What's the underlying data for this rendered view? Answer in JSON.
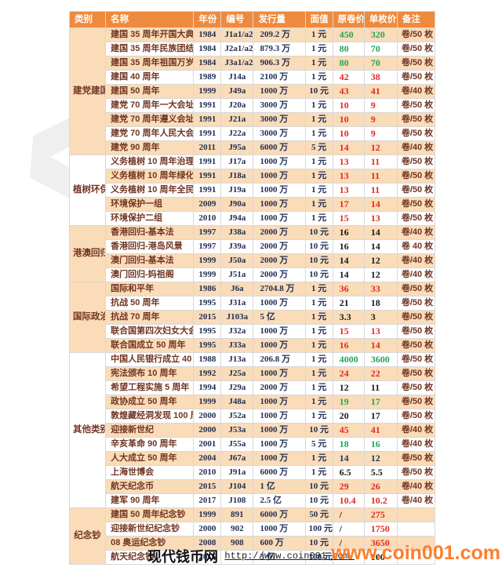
{
  "colors": {
    "header_bg": "#ee8a3d",
    "row_alt_bg": "#fadcb9",
    "text_maroon": "#713421",
    "text_navy_serif": "#223055",
    "price_red": "#e02b22",
    "price_green": "#27a35b",
    "price_black": "#1a1a1a",
    "price_navy": "#1c3a6e",
    "watermark_orange": "#ff7e2a"
  },
  "table": {
    "headers": [
      "类别",
      "名称",
      "年份",
      "编号",
      "发行量",
      "面值",
      "原卷价",
      "单枚价",
      "备注"
    ],
    "categories": [
      {
        "name": "建党建国",
        "rows": [
          {
            "name": "建国 35 周年开国大典",
            "year": "1984",
            "code": "J1a1/a2",
            "issue": "209.2 万",
            "face": "1 元",
            "roll": "450",
            "unit": "320",
            "roll_color": "green",
            "unit_color": "green",
            "note": "卷/50 枚"
          },
          {
            "name": "建国 35 周年民族团结",
            "year": "1984",
            "code": "J2a1/a2",
            "issue": "879.3 万",
            "face": "1 元",
            "roll": "80",
            "unit": "70",
            "roll_color": "green",
            "unit_color": "green",
            "note": "卷/50 枚"
          },
          {
            "name": "建国 35 周年祖国万岁",
            "year": "1984",
            "code": "J3a1/a2",
            "issue": "906.3 万",
            "face": "1 元",
            "roll": "80",
            "unit": "70",
            "roll_color": "green",
            "unit_color": "green",
            "note": "卷/50 枚"
          },
          {
            "name": "建国 40 周年",
            "year": "1989",
            "code": "J14a",
            "issue": "2100 万",
            "face": "1 元",
            "roll": "42",
            "unit": "38",
            "roll_color": "red",
            "unit_color": "red",
            "note": "卷/50 枚"
          },
          {
            "name": "建国 50 周年",
            "year": "1999",
            "code": "J49a",
            "issue": "1000 万",
            "face": "10 元",
            "roll": "43",
            "unit": "41",
            "roll_color": "red",
            "unit_color": "red",
            "note": "卷/40 枚"
          },
          {
            "name": "建党 70 周年一大会址",
            "year": "1991",
            "code": "J20a",
            "issue": "3000 万",
            "face": "1 元",
            "roll": "10",
            "unit": "9",
            "roll_color": "red",
            "unit_color": "red",
            "note": "卷/50 枚"
          },
          {
            "name": "建党 70 周年遵义会址",
            "year": "1991",
            "code": "J21a",
            "issue": "3000 万",
            "face": "1 元",
            "roll": "10",
            "unit": "9",
            "roll_color": "red",
            "unit_color": "red",
            "note": "卷/50 枚"
          },
          {
            "name": "建党 70 周年人民大会堂",
            "year": "1991",
            "code": "J22a",
            "issue": "3000 万",
            "face": "1 元",
            "roll": "10",
            "unit": "9",
            "roll_color": "red",
            "unit_color": "red",
            "note": "卷/50 枚"
          },
          {
            "name": "建党 90 周年",
            "year": "2011",
            "code": "J95a",
            "issue": "6000 万",
            "face": "5 元",
            "roll": "14",
            "unit": "12",
            "roll_color": "red",
            "unit_color": "red",
            "note": "卷/40 枚"
          }
        ]
      },
      {
        "name": "植树环保",
        "rows": [
          {
            "name": "义务植树 10 周年治理山河",
            "year": "1991",
            "code": "J17a",
            "issue": "1000 万",
            "face": "1 元",
            "roll": "13",
            "unit": "11",
            "roll_color": "red",
            "unit_color": "red",
            "note": "卷/50 枚"
          },
          {
            "name": "义务植树 10 周年绿化祖国",
            "year": "1991",
            "code": "J18a",
            "issue": "1000 万",
            "face": "1 元",
            "roll": "13",
            "unit": "11",
            "roll_color": "red",
            "unit_color": "red",
            "note": "卷/50 枚"
          },
          {
            "name": "义务植树 10 周年全民动员",
            "year": "1991",
            "code": "J19a",
            "issue": "1000 万",
            "face": "1 元",
            "roll": "13",
            "unit": "11",
            "roll_color": "red",
            "unit_color": "red",
            "note": "卷/50 枚"
          },
          {
            "name": "环境保护一组",
            "year": "2009",
            "code": "J90a",
            "issue": "1000 万",
            "face": "1 元",
            "roll": "17",
            "unit": "14",
            "roll_color": "red",
            "unit_color": "red",
            "note": "卷/50 枚"
          },
          {
            "name": "环境保护二组",
            "year": "2010",
            "code": "J94a",
            "issue": "1000 万",
            "face": "1 元",
            "roll": "15",
            "unit": "13",
            "roll_color": "red",
            "unit_color": "red",
            "note": "卷/50 枚"
          }
        ]
      },
      {
        "name": "港澳回归",
        "rows": [
          {
            "name": "香港回归-基本法",
            "year": "1997",
            "code": "J38a",
            "issue": "2000 万",
            "face": "10 元",
            "roll": "16",
            "unit": "14",
            "roll_color": "black",
            "unit_color": "black",
            "note": "卷/40 枚"
          },
          {
            "name": "香港回归-港岛风景",
            "year": "1997",
            "code": "J39a",
            "issue": "2000 万",
            "face": "10 元",
            "roll": "16",
            "unit": "14",
            "roll_color": "black",
            "unit_color": "black",
            "note": "卷 40 枚"
          },
          {
            "name": "澳门回归-基本法",
            "year": "1999",
            "code": "J50a",
            "issue": "2000 万",
            "face": "10 元",
            "roll": "14",
            "unit": "12",
            "roll_color": "black",
            "unit_color": "black",
            "note": "卷/40 枚"
          },
          {
            "name": "澳门回归-妈祖阁",
            "year": "1999",
            "code": "J51a",
            "issue": "2000 万",
            "face": "10 元",
            "roll": "14",
            "unit": "12",
            "roll_color": "black",
            "unit_color": "black",
            "note": "卷/40 枚"
          }
        ]
      },
      {
        "name": "国际政治",
        "rows": [
          {
            "name": "国际和平年",
            "year": "1986",
            "code": "J6a",
            "issue": "2704.8 万",
            "face": "1 元",
            "roll": "36",
            "unit": "33",
            "roll_color": "red",
            "unit_color": "red",
            "note": "卷/50 枚"
          },
          {
            "name": "抗战 50 周年",
            "year": "1995",
            "code": "J31a",
            "issue": "1000 万",
            "face": "1 元",
            "roll": "21",
            "unit": "18",
            "roll_color": "black",
            "unit_color": "black",
            "note": "卷/50 枚"
          },
          {
            "name": "抗战 70 周年",
            "year": "2015",
            "code": "J103a",
            "issue": "5 亿",
            "face": "1 元",
            "roll": "3.3",
            "unit": "3",
            "roll_color": "black",
            "unit_color": "black",
            "note": "卷/50 枚"
          },
          {
            "name": "联合国第四次妇女大会",
            "year": "1995",
            "code": "J32a",
            "issue": "1000 万",
            "face": "1 元",
            "roll": "15",
            "unit": "13",
            "roll_color": "red",
            "unit_color": "red",
            "note": "卷/50 枚"
          },
          {
            "name": "联合国成立 50 周年",
            "year": "1995",
            "code": "J33a",
            "issue": "1000 万",
            "face": "1 元",
            "roll": "16",
            "unit": "14",
            "roll_color": "red",
            "unit_color": "red",
            "note": "卷/50 枚"
          }
        ]
      },
      {
        "name": "其他类别",
        "rows": [
          {
            "name": "中国人民银行成立 40 周年",
            "year": "1988",
            "code": "J13a",
            "issue": "206.8 万",
            "face": "1 元",
            "roll": "4000",
            "unit": "3600",
            "roll_color": "green",
            "unit_color": "green",
            "note": "卷/50 枚"
          },
          {
            "name": "宪法颁布 10 周年",
            "year": "1992",
            "code": "J25a",
            "issue": "1000 万",
            "face": "1 元",
            "roll": "24",
            "unit": "22",
            "roll_color": "red",
            "unit_color": "red",
            "note": "卷/50 枚"
          },
          {
            "name": "希望工程实施 5 周年",
            "year": "1994",
            "code": "J29a",
            "issue": "2000 万",
            "face": "1 元",
            "roll": "12",
            "unit": "11",
            "roll_color": "black",
            "unit_color": "black",
            "note": "卷/50 枚"
          },
          {
            "name": "政协成立 50 周年",
            "year": "1999",
            "code": "J48a",
            "issue": "1000 万",
            "face": "1 元",
            "roll": "19",
            "unit": "17",
            "roll_color": "green",
            "unit_color": "green",
            "note": "卷/50 枚"
          },
          {
            "name": "敦煌藏经洞发现 100 周年",
            "year": "2000",
            "code": "J52a",
            "issue": "1000 万",
            "face": "1 元",
            "roll": "20",
            "unit": "17",
            "roll_color": "black",
            "unit_color": "black",
            "note": "卷/50 枚"
          },
          {
            "name": "迎接新世纪",
            "year": "2000",
            "code": "J53a",
            "issue": "1000 万",
            "face": "10 元",
            "roll": "45",
            "unit": "41",
            "roll_color": "red",
            "unit_color": "red",
            "note": "卷/40 枚"
          },
          {
            "name": "辛亥革命 90 周年",
            "year": "2001",
            "code": "J55a",
            "issue": "1000 万",
            "face": "5 元",
            "roll": "18",
            "unit": "16",
            "roll_color": "green",
            "unit_color": "green",
            "note": "卷/40 枚"
          },
          {
            "name": "人大成立 50 周年",
            "year": "2004",
            "code": "J67a",
            "issue": "1000 万",
            "face": "1 元",
            "roll": "14",
            "unit": "12",
            "roll_color": "navy",
            "unit_color": "navy",
            "note": "卷/50 枚"
          },
          {
            "name": "上海世博会",
            "year": "2010",
            "code": "J91a",
            "issue": "6000 万",
            "face": "1 元",
            "roll": "6.5",
            "unit": "5.5",
            "roll_color": "black",
            "unit_color": "black",
            "note": "卷/50 枚"
          },
          {
            "name": "航天纪念币",
            "year": "2015",
            "code": "J104",
            "issue": "1 亿",
            "face": "10 元",
            "roll": "29",
            "unit": "26",
            "roll_color": "red",
            "unit_color": "red",
            "note": "卷/40 枚"
          },
          {
            "name": "建军 90 周年",
            "year": "2017",
            "code": "J108",
            "issue": "2.5 亿",
            "face": "10 元",
            "roll": "10.4",
            "unit": "10.2",
            "roll_color": "red",
            "unit_color": "red",
            "note": "卷/40 枚"
          }
        ]
      },
      {
        "name": "纪念钞",
        "rows": [
          {
            "name": "建国 50 周年纪念钞",
            "year": "1999",
            "code": "891",
            "issue": "6000 万",
            "face": "50 元",
            "roll": "/",
            "unit": "275",
            "roll_color": "black",
            "unit_color": "red",
            "note": ""
          },
          {
            "name": "迎接新世纪纪念钞",
            "year": "2000",
            "code": "902",
            "issue": "1000 万",
            "face": "100 元",
            "roll": "/",
            "unit": "1750",
            "roll_color": "black",
            "unit_color": "red",
            "note": ""
          },
          {
            "name": "08 奥运纪念钞",
            "year": "2008",
            "code": "908",
            "issue": "600 万",
            "face": "10 元",
            "roll": "/",
            "unit": "3650",
            "roll_color": "black",
            "unit_color": "red",
            "note": ""
          },
          {
            "name": "航天纪念钞",
            "year": "2015",
            "code": "",
            "issue": "3 亿",
            "face": "100 元",
            "roll": "/",
            "unit": "100",
            "roll_color": "black",
            "unit_color": "black",
            "note": ""
          }
        ]
      }
    ]
  },
  "footer": {
    "site_name": "现代钱币网",
    "site_url": "http://www.coin001.com/",
    "orange_watermark": "www.coin001.com"
  },
  "watermark_glyphs": {
    "chevron": "<",
    "slashes": "//",
    "scurve": "S"
  }
}
